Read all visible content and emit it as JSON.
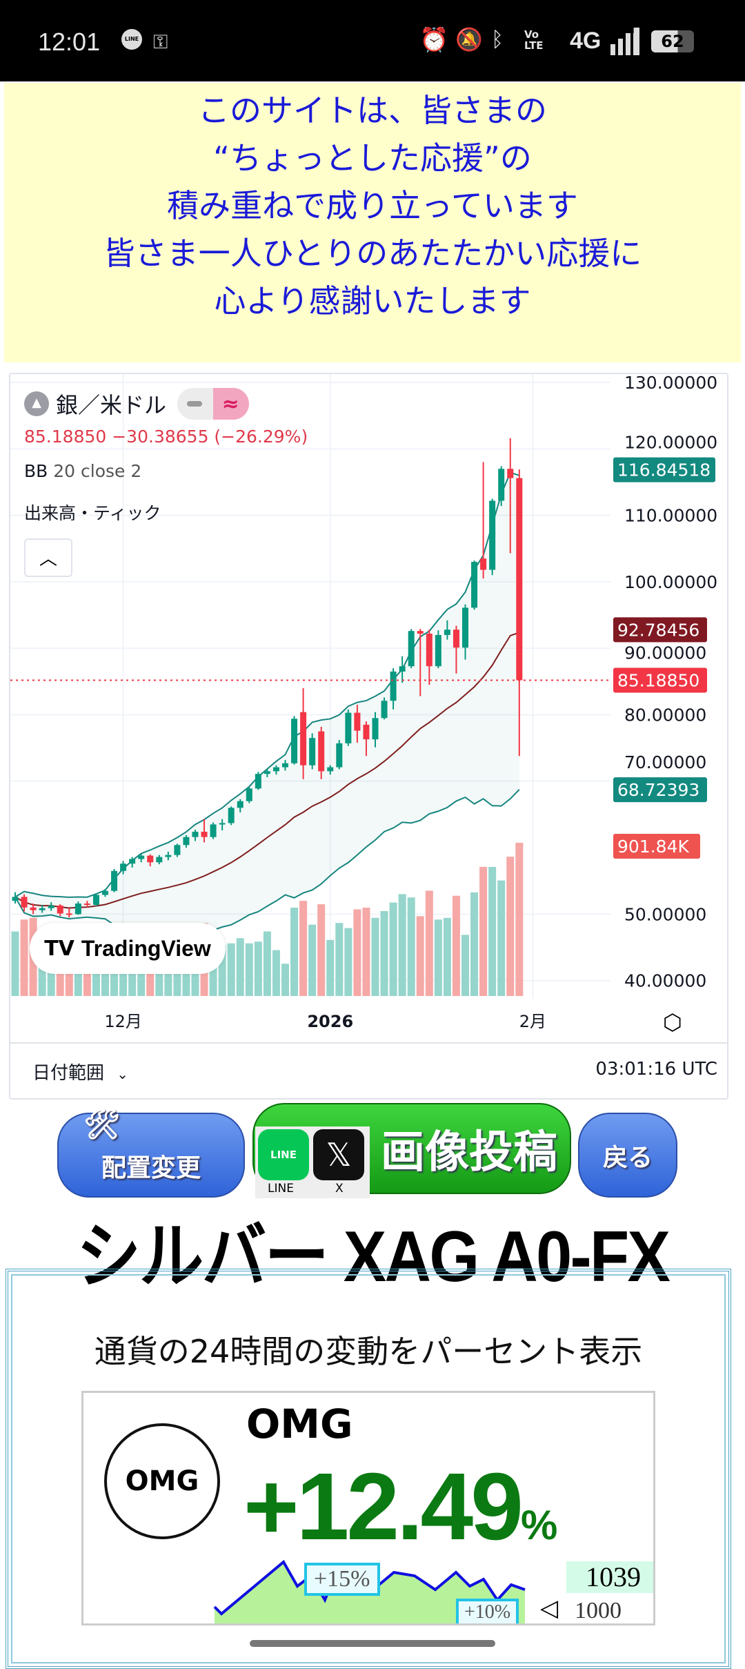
{
  "status_bar": {
    "time": "12:01",
    "battery": "62",
    "network": "4G",
    "icons": [
      "line-icon",
      "key-icon",
      "alarm-icon",
      "bell-off-icon",
      "bluetooth-icon",
      "volte-icon",
      "signal-icon",
      "battery-icon"
    ]
  },
  "banner": {
    "lines": [
      "このサイトは、皆さまの",
      "“ちょっとした応援”の",
      "積み重ねで成り立っています",
      "皆さま一人ひとりのあたたかい応援に",
      "心より感謝いたします"
    ],
    "color": "#1a1ad8"
  },
  "chart_widget": {
    "symbol": "銀／米ドル",
    "price_line": "85.18850  −30.38655 (−26.29%)",
    "indicator_name": "BB",
    "indicator_params": "20 close 2",
    "volume_label": "出来高・ティック",
    "logo": "TradingView",
    "date_range": "日付範囲",
    "time": "03:01:16 UTC",
    "badges": {
      "upper": "116.84518",
      "middle": "92.78456",
      "last": "85.18850",
      "lower": "68.72393",
      "volume": "901.84K"
    },
    "colors": {
      "up": "#089981",
      "down": "#F23645",
      "band": "#15857f",
      "basis": "#7f1d1d"
    }
  },
  "chart_data": {
    "type": "candlestick",
    "ylim": [
      40,
      130
    ],
    "y_ticks": [
      "130.00000",
      "120.00000",
      "110.00000",
      "100.00000",
      "90.00000",
      "80.00000",
      "70.00000",
      "50.00000",
      "40.00000"
    ],
    "y_tick_values": [
      130,
      120,
      110,
      100,
      90,
      80,
      70,
      50,
      40
    ],
    "x_ticks": [
      {
        "label": "12月",
        "date": "2025-12-01"
      },
      {
        "label": "2026",
        "date": "2026-01-01"
      },
      {
        "label": "2月",
        "date": "2026-02-02"
      }
    ],
    "last_price": 85.1885,
    "candles": [
      [
        "2025-11-13",
        52.0,
        53.3,
        51.6,
        52.6,
        380
      ],
      [
        "2025-11-14",
        52.6,
        53.0,
        50.4,
        51.0,
        450
      ],
      [
        "2025-11-17",
        51.0,
        51.6,
        50.0,
        50.6,
        460
      ],
      [
        "2025-11-18",
        50.6,
        51.4,
        50.2,
        50.9,
        330
      ],
      [
        "2025-11-19",
        50.9,
        51.8,
        50.5,
        51.3,
        320
      ],
      [
        "2025-11-20",
        51.3,
        51.5,
        49.7,
        50.1,
        360
      ],
      [
        "2025-11-21",
        50.1,
        50.9,
        49.5,
        50.0,
        340
      ],
      [
        "2025-11-24",
        50.0,
        51.9,
        49.9,
        51.6,
        300
      ],
      [
        "2025-11-25",
        51.6,
        52.0,
        51.0,
        51.4,
        280
      ],
      [
        "2025-11-26",
        51.4,
        53.1,
        51.2,
        52.9,
        300
      ],
      [
        "2025-11-27",
        52.9,
        53.8,
        52.6,
        53.5,
        230
      ],
      [
        "2025-11-28",
        53.5,
        56.8,
        53.3,
        56.5,
        420
      ],
      [
        "2025-12-01",
        56.5,
        58.0,
        56.0,
        57.6,
        380
      ],
      [
        "2025-12-02",
        57.6,
        58.6,
        57.0,
        58.3,
        300
      ],
      [
        "2025-12-03",
        58.3,
        59.0,
        57.8,
        58.8,
        310
      ],
      [
        "2025-12-04",
        58.8,
        59.0,
        57.2,
        57.8,
        330
      ],
      [
        "2025-12-05",
        57.8,
        58.9,
        57.5,
        58.6,
        340
      ],
      [
        "2025-12-08",
        58.6,
        59.4,
        58.1,
        58.9,
        310
      ],
      [
        "2025-12-09",
        58.9,
        60.6,
        58.6,
        60.4,
        360
      ],
      [
        "2025-12-10",
        60.4,
        61.9,
        60.0,
        61.6,
        380
      ],
      [
        "2025-12-11",
        61.6,
        62.7,
        61.0,
        62.4,
        360
      ],
      [
        "2025-12-12",
        62.4,
        64.3,
        60.8,
        61.6,
        430
      ],
      [
        "2025-12-15",
        61.6,
        63.8,
        61.3,
        63.5,
        400
      ],
      [
        "2025-12-16",
        63.5,
        64.3,
        62.6,
        63.7,
        300
      ],
      [
        "2025-12-17",
        63.7,
        66.2,
        63.4,
        66.0,
        310
      ],
      [
        "2025-12-18",
        66.0,
        67.3,
        65.3,
        67.0,
        340
      ],
      [
        "2025-12-19",
        67.0,
        69.1,
        66.7,
        68.9,
        310
      ],
      [
        "2025-12-22",
        68.9,
        71.4,
        68.7,
        71.1,
        320
      ],
      [
        "2025-12-23",
        71.1,
        71.8,
        70.6,
        71.5,
        380
      ],
      [
        "2025-12-24",
        71.5,
        72.4,
        71.0,
        72.1,
        270
      ],
      [
        "2025-12-25",
        72.1,
        73.2,
        71.6,
        72.7,
        190
      ],
      [
        "2025-12-26",
        72.7,
        79.8,
        72.5,
        79.4,
        520
      ],
      [
        "2025-12-29",
        80.4,
        84.0,
        70.3,
        72.4,
        560
      ],
      [
        "2025-12-30",
        72.4,
        77.2,
        71.8,
        76.5,
        420
      ],
      [
        "2025-12-31",
        77.5,
        78.2,
        70.3,
        71.5,
        540
      ],
      [
        "2026-01-01",
        71.5,
        72.4,
        71.0,
        72.1,
        330
      ],
      [
        "2026-01-02",
        72.1,
        76.2,
        71.8,
        75.7,
        430
      ],
      [
        "2026-01-05",
        75.7,
        80.8,
        75.3,
        80.3,
        400
      ],
      [
        "2026-01-06",
        80.3,
        81.5,
        75.8,
        77.6,
        510
      ],
      [
        "2026-01-07",
        78.5,
        79.0,
        73.8,
        76.3,
        520
      ],
      [
        "2026-01-08",
        76.3,
        80.4,
        75.1,
        79.5,
        460
      ],
      [
        "2026-01-09",
        79.5,
        82.6,
        79.3,
        82.1,
        500
      ],
      [
        "2026-01-12",
        82.1,
        87.0,
        80.8,
        86.5,
        550
      ],
      [
        "2026-01-13",
        86.5,
        88.8,
        84.8,
        87.3,
        600
      ],
      [
        "2026-01-14",
        87.3,
        92.9,
        87.0,
        92.6,
        580
      ],
      [
        "2026-01-15",
        92.6,
        92.9,
        82.8,
        92.2,
        470
      ],
      [
        "2026-01-16",
        92.2,
        92.8,
        84.5,
        87.3,
        620
      ],
      [
        "2026-01-19",
        87.3,
        92.7,
        87.0,
        92.0,
        450
      ],
      [
        "2026-01-20",
        92.0,
        94.2,
        91.3,
        92.8,
        460
      ],
      [
        "2026-01-21",
        92.8,
        93.4,
        86.2,
        90.1,
        590
      ],
      [
        "2026-01-22",
        90.1,
        96.6,
        88.3,
        96.1,
        360
      ],
      [
        "2026-01-23",
        96.1,
        103.2,
        95.8,
        103.0,
        610
      ],
      [
        "2026-01-26",
        103.5,
        118.0,
        100.5,
        101.8,
        760
      ],
      [
        "2026-01-27",
        101.8,
        112.5,
        101.0,
        112.2,
        760
      ],
      [
        "2026-01-28",
        112.2,
        117.4,
        111.4,
        117.0,
        680
      ],
      [
        "2026-01-29",
        117.0,
        121.6,
        104.3,
        115.6,
        820
      ],
      [
        "2026-01-30",
        115.6,
        116.9,
        73.8,
        85.19,
        901.84
      ]
    ],
    "candle_fields": [
      "date",
      "open",
      "high",
      "low",
      "close",
      "volume_k"
    ],
    "bollinger": {
      "period": 20,
      "source": "close",
      "mult": 2
    }
  },
  "buttons": {
    "layout": "配置変更",
    "post": "画像投稿",
    "line": "LINE",
    "x": "X",
    "back": "戻る"
  },
  "page_title": "シルバー XAG A0-FX",
  "box": {
    "heading": "通貨の24時間の変動をパーセント表示",
    "card": {
      "symbol": "OMG",
      "logo_text": "OMG",
      "change": "+12.49",
      "percent_sign": "%",
      "tag_high": "+15%",
      "tag_price": "1039",
      "tag_low": "1000",
      "tag_low2": "+10%"
    }
  }
}
